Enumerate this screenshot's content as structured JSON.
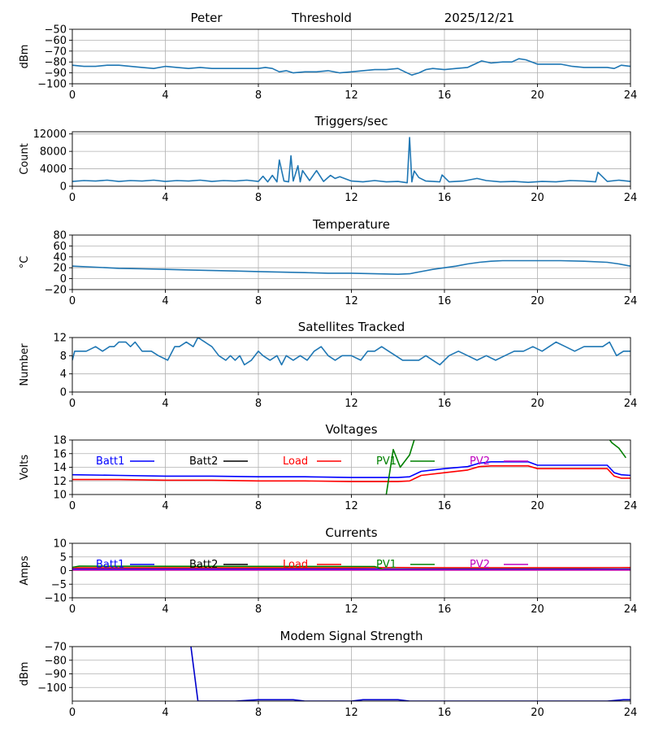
{
  "header": {
    "name": "Peter",
    "threshold_label": "Threshold",
    "date": "2025/12/21"
  },
  "colors": {
    "series_default": "#1f77b4",
    "batt1": "#0000ff",
    "batt2": "#000000",
    "load": "#ff0000",
    "pv1": "#008000",
    "pv2": "#bf00bf",
    "modem": "#0000cc",
    "grid": "#b0b0b0"
  },
  "chart_data": [
    {
      "id": "threshold",
      "type": "line",
      "title": "",
      "ylabel": "dBm",
      "xlim": [
        0,
        24
      ],
      "ylim": [
        -100,
        -50
      ],
      "xticks": [
        "0",
        "4",
        "8",
        "12",
        "16",
        "20",
        "24"
      ],
      "yticks": [
        -50,
        -60,
        -70,
        -80,
        -90,
        -100
      ],
      "ytick_labels": [
        "−50",
        "−60",
        "−70",
        "−80",
        "−90",
        "−100"
      ],
      "grid": true,
      "series": [
        {
          "name": "Threshold",
          "color": "series_default",
          "x": [
            0,
            0.5,
            1,
            1.5,
            2,
            2.5,
            3,
            3.5,
            4,
            4.5,
            5,
            5.5,
            6,
            6.5,
            7,
            7.5,
            8,
            8.3,
            8.6,
            8.9,
            9.2,
            9.5,
            10,
            10.5,
            11,
            11.5,
            12,
            12.5,
            13,
            13.5,
            14,
            14.3,
            14.6,
            14.9,
            15.2,
            15.5,
            16,
            16.5,
            17,
            17.3,
            17.6,
            18,
            18.5,
            18.9,
            19.2,
            19.5,
            20,
            20.5,
            21,
            21.5,
            22,
            22.5,
            23,
            23.3,
            23.6,
            24
          ],
          "y": [
            -83,
            -84,
            -84,
            -83,
            -83,
            -84,
            -85,
            -86,
            -84,
            -85,
            -86,
            -85,
            -86,
            -86,
            -86,
            -86,
            -86,
            -85,
            -86,
            -89,
            -88,
            -90,
            -89,
            -89,
            -88,
            -90,
            -89,
            -88,
            -87,
            -87,
            -86,
            -89,
            -92,
            -90,
            -87,
            -86,
            -87,
            -86,
            -85,
            -82,
            -79,
            -81,
            -80,
            -80,
            -77,
            -78,
            -82,
            -82,
            -82,
            -84,
            -85,
            -85,
            -85,
            -86,
            -83,
            -84
          ]
        }
      ]
    },
    {
      "id": "triggers",
      "type": "line",
      "title": "Triggers/sec",
      "ylabel": "Count",
      "xlim": [
        0,
        24
      ],
      "ylim": [
        0,
        12500
      ],
      "xticks": [
        "0",
        "4",
        "8",
        "12",
        "16",
        "20",
        "24"
      ],
      "yticks": [
        0,
        4000,
        8000,
        12000
      ],
      "ytick_labels": [
        "0",
        "4000",
        "8000",
        "12000"
      ],
      "grid": true,
      "series": [
        {
          "name": "Triggers",
          "color": "series_default",
          "x": [
            0,
            0.5,
            1,
            1.5,
            2,
            2.5,
            3,
            3.5,
            4,
            4.5,
            5,
            5.5,
            6,
            6.5,
            7,
            7.5,
            8,
            8.2,
            8.4,
            8.6,
            8.8,
            8.9,
            9.1,
            9.3,
            9.4,
            9.5,
            9.7,
            9.8,
            9.9,
            10.2,
            10.5,
            10.8,
            11.1,
            11.3,
            11.5,
            12,
            12.5,
            13,
            13.5,
            14,
            14.4,
            14.5,
            14.6,
            14.7,
            14.9,
            15.2,
            15.5,
            15.8,
            15.9,
            16.2,
            16.8,
            17.4,
            17.8,
            18.4,
            19,
            19.6,
            20.2,
            20.8,
            21.4,
            22,
            22.5,
            22.6,
            23,
            23.5,
            24
          ],
          "y": [
            1100,
            1300,
            1200,
            1400,
            1100,
            1300,
            1200,
            1400,
            1100,
            1300,
            1200,
            1400,
            1100,
            1300,
            1200,
            1400,
            1100,
            2300,
            1000,
            2500,
            1000,
            6000,
            1200,
            1000,
            7000,
            1200,
            4700,
            1000,
            3600,
            1300,
            3600,
            1100,
            2500,
            1800,
            2200,
            1200,
            1000,
            1300,
            1000,
            1100,
            800,
            11200,
            1000,
            3500,
            2000,
            1200,
            1100,
            1000,
            2600,
            1000,
            1200,
            1800,
            1300,
            1000,
            1100,
            900,
            1100,
            1000,
            1300,
            1200,
            1000,
            3200,
            1100,
            1400,
            1100
          ]
        }
      ]
    },
    {
      "id": "temperature",
      "type": "line",
      "title": "Temperature",
      "ylabel": "°C",
      "xlim": [
        0,
        24
      ],
      "ylim": [
        -20,
        80
      ],
      "xticks": [
        "0",
        "4",
        "8",
        "12",
        "16",
        "20",
        "24"
      ],
      "yticks": [
        80,
        60,
        40,
        20,
        0,
        -20
      ],
      "ytick_labels": [
        "80",
        "60",
        "40",
        "20",
        "0",
        "−20"
      ],
      "grid": true,
      "series": [
        {
          "name": "Temperature",
          "color": "series_default",
          "x": [
            0,
            1,
            2,
            3,
            4,
            5,
            6,
            7,
            8,
            9,
            10,
            11,
            12,
            13,
            14,
            14.5,
            15,
            15.5,
            16,
            16.5,
            17,
            17.5,
            18,
            18.5,
            19,
            20,
            21,
            22,
            23,
            23.5,
            24
          ],
          "y": [
            23,
            21,
            19,
            18,
            17,
            16,
            15,
            14,
            13,
            12,
            11,
            10,
            10,
            9,
            8,
            9,
            13,
            17,
            20,
            23,
            27,
            30,
            32,
            33,
            33,
            33,
            33,
            32,
            30,
            27,
            23
          ]
        }
      ]
    },
    {
      "id": "satellites",
      "type": "line",
      "title": "Satellites Tracked",
      "ylabel": "Number",
      "xlim": [
        0,
        24
      ],
      "ylim": [
        0,
        12
      ],
      "xticks": [
        "0",
        "4",
        "8",
        "12",
        "16",
        "20",
        "24"
      ],
      "yticks": [
        12,
        8,
        4,
        0
      ],
      "ytick_labels": [
        "12",
        "8",
        "4",
        "0"
      ],
      "grid": true,
      "series": [
        {
          "name": "Satellites",
          "color": "series_default",
          "x": [
            0,
            0.1,
            0.6,
            1,
            1.3,
            1.6,
            1.8,
            2,
            2.3,
            2.5,
            2.7,
            3,
            3.4,
            3.7,
            4.1,
            4.4,
            4.6,
            4.9,
            5.2,
            5.4,
            5.7,
            6,
            6.3,
            6.6,
            6.8,
            7,
            7.2,
            7.4,
            7.7,
            8,
            8.2,
            8.5,
            8.8,
            9,
            9.2,
            9.5,
            9.8,
            10.1,
            10.4,
            10.7,
            11,
            11.3,
            11.6,
            12,
            12.4,
            12.7,
            13,
            13.3,
            13.6,
            13.9,
            14.2,
            14.6,
            14.9,
            15.2,
            15.5,
            15.8,
            16.2,
            16.6,
            17,
            17.4,
            17.8,
            18.2,
            18.6,
            19,
            19.4,
            19.8,
            20.2,
            20.5,
            20.8,
            21.2,
            21.6,
            22,
            22.4,
            22.8,
            23.1,
            23.4,
            23.7,
            24
          ],
          "y": [
            7,
            9,
            9,
            10,
            9,
            10,
            10,
            11,
            11,
            10,
            11,
            9,
            9,
            8,
            7,
            10,
            10,
            11,
            10,
            12,
            11,
            10,
            8,
            7,
            8,
            7,
            8,
            6,
            7,
            9,
            8,
            7,
            8,
            6,
            8,
            7,
            8,
            7,
            9,
            10,
            8,
            7,
            8,
            8,
            7,
            9,
            9,
            10,
            9,
            8,
            7,
            7,
            7,
            8,
            7,
            6,
            8,
            9,
            8,
            7,
            8,
            7,
            8,
            9,
            9,
            10,
            9,
            10,
            11,
            10,
            9,
            10,
            10,
            10,
            11,
            8,
            9,
            9
          ]
        }
      ]
    },
    {
      "id": "voltages",
      "type": "line",
      "title": "Voltages",
      "ylabel": "Volts",
      "xlim": [
        0,
        24
      ],
      "ylim": [
        10,
        18
      ],
      "xticks": [
        "0",
        "4",
        "8",
        "12",
        "16",
        "20",
        "24"
      ],
      "yticks": [
        18,
        16,
        14,
        12,
        10
      ],
      "ytick_labels": [
        "18",
        "16",
        "14",
        "12",
        "10"
      ],
      "grid": true,
      "legend": [
        "Batt1",
        "Batt2",
        "Load",
        "PV1",
        "PV2"
      ],
      "series": [
        {
          "name": "Batt1",
          "color": "batt1",
          "x": [
            0,
            2,
            4,
            6,
            8,
            10,
            12,
            13,
            14,
            14.5,
            15,
            16,
            17,
            17.5,
            18,
            19,
            19.6,
            20,
            21,
            22,
            23,
            23.3,
            23.6,
            24
          ],
          "y": [
            12.9,
            12.8,
            12.7,
            12.7,
            12.6,
            12.6,
            12.5,
            12.5,
            12.5,
            12.6,
            13.4,
            13.8,
            14.1,
            14.6,
            14.8,
            14.8,
            14.8,
            14.3,
            14.3,
            14.3,
            14.3,
            13.2,
            12.9,
            12.8
          ]
        },
        {
          "name": "Load",
          "color": "load",
          "x": [
            0,
            2,
            4,
            6,
            8,
            10,
            12,
            13,
            14,
            14.5,
            15,
            16,
            17,
            17.5,
            18,
            19,
            19.6,
            20,
            21,
            22,
            23,
            23.3,
            23.6,
            24
          ],
          "y": [
            12.2,
            12.2,
            12.1,
            12.1,
            12.0,
            12.0,
            11.9,
            11.9,
            11.9,
            12.0,
            12.8,
            13.2,
            13.6,
            14.1,
            14.2,
            14.2,
            14.2,
            13.8,
            13.8,
            13.8,
            13.8,
            12.7,
            12.4,
            12.4
          ]
        },
        {
          "name": "PV1",
          "color": "pv1",
          "x": [
            13.5,
            13.8,
            14.1,
            14.5,
            14.7,
            14.9
          ],
          "y": [
            10,
            16.6,
            14,
            15.8,
            18,
            19
          ]
        },
        {
          "name": "PV1b",
          "color": "pv1",
          "x": [
            23.0,
            23.2,
            23.5,
            23.8
          ],
          "y": [
            18.5,
            17.6,
            16.8,
            15.4
          ]
        }
      ]
    },
    {
      "id": "currents",
      "type": "line",
      "title": "Currents",
      "ylabel": "Amps",
      "xlim": [
        0,
        24
      ],
      "ylim": [
        -10,
        10
      ],
      "xticks": [
        "0",
        "4",
        "8",
        "12",
        "16",
        "20",
        "24"
      ],
      "yticks": [
        10,
        5,
        0,
        -5,
        -10
      ],
      "ytick_labels": [
        "10",
        "5",
        "0",
        "−5",
        "−10"
      ],
      "grid": true,
      "legend": [
        "Batt1",
        "Batt2",
        "Load",
        "PV1",
        "PV2"
      ],
      "series": [
        {
          "name": "Batt1",
          "color": "batt1",
          "x": [
            0,
            24
          ],
          "y": [
            0.5,
            0.5
          ]
        },
        {
          "name": "Load",
          "color": "load",
          "x": [
            0,
            2,
            4,
            6,
            8,
            10,
            12,
            14,
            16,
            18,
            20,
            22,
            24
          ],
          "y": [
            1.0,
            1.0,
            1.0,
            1.0,
            1.0,
            1.0,
            1.0,
            1.1,
            1.0,
            1.0,
            1.0,
            1.0,
            1.1
          ]
        },
        {
          "name": "PV1",
          "color": "pv1",
          "x": [
            0,
            0.3,
            13,
            13.4,
            24
          ],
          "y": [
            1.2,
            1.6,
            1.5,
            0.3,
            0.3
          ]
        },
        {
          "name": "PV2",
          "color": "pv2",
          "x": [
            0,
            24
          ],
          "y": [
            0.2,
            0.2
          ]
        }
      ]
    },
    {
      "id": "modem",
      "type": "line",
      "title": "Modem Signal Strength",
      "ylabel": "dBm",
      "xlim": [
        0,
        24
      ],
      "ylim": [
        -110,
        -70
      ],
      "xticks": [
        "0",
        "4",
        "8",
        "12",
        "16",
        "20",
        "24"
      ],
      "yticks": [
        -70,
        -80,
        -90,
        -100
      ],
      "ytick_labels": [
        "−70",
        "−80",
        "−90",
        "−100"
      ],
      "grid": true,
      "series": [
        {
          "name": "Modem",
          "color": "modem",
          "x": [
            5.1,
            5.4,
            6,
            7,
            8,
            9,
            9.5,
            10,
            11,
            12,
            12.5,
            13,
            14,
            14.5,
            15,
            16,
            17,
            18,
            19,
            20,
            21,
            22,
            23,
            23.7,
            24
          ],
          "y": [
            -70,
            -110,
            -110,
            -110,
            -109,
            -109,
            -109,
            -110,
            -110,
            -110,
            -109,
            -109,
            -109,
            -110,
            -110,
            -110,
            -110,
            -110,
            -110,
            -110,
            -110,
            -110,
            -110,
            -109,
            -109
          ]
        }
      ]
    }
  ]
}
